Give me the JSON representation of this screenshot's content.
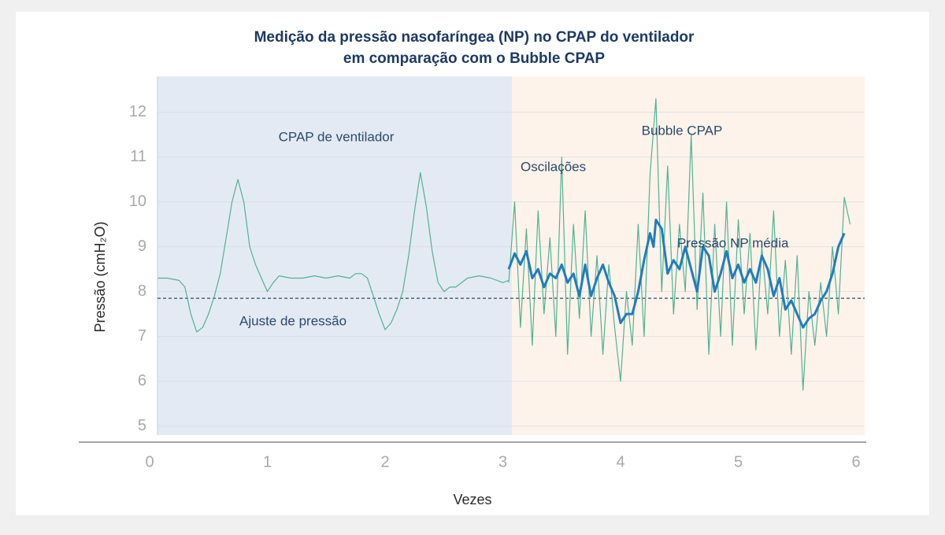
{
  "chart_data": {
    "type": "line",
    "title": [
      "Medição da pressão nasofaríngea (NP) no CPAP do ventilador",
      "em comparação com o Bubble CPAP"
    ],
    "x_label": "Vezes",
    "y_label": "Pressão (cmH₂O)",
    "xlim": [
      0,
      6
    ],
    "xticks": [
      0,
      1,
      2,
      3,
      4,
      5,
      6
    ],
    "ylim": [
      4.8,
      12.8
    ],
    "yticks": [
      5,
      6,
      7,
      8,
      9,
      10,
      11,
      12
    ],
    "grid": true,
    "reference_line": {
      "value": 7.85,
      "color": "#2a4a6e"
    },
    "annotations": [
      "CPAP de ventilador",
      "Bubble CPAP",
      "Oscilações",
      "Pressão NP média",
      "Ajuste de pressão"
    ],
    "series": [
      {
        "color": "#4fb393",
        "width": 1.2,
        "x": [
          0.07,
          0.15,
          0.25,
          0.3,
          0.35,
          0.4,
          0.45,
          0.5,
          0.55,
          0.6,
          0.65,
          0.7,
          0.75,
          0.8,
          0.85,
          0.9,
          0.95,
          1.0,
          1.05,
          1.1,
          1.2,
          1.3,
          1.4,
          1.5,
          1.6,
          1.7,
          1.75,
          1.8,
          1.85,
          1.9,
          1.95,
          2.0,
          2.05,
          2.1,
          2.15,
          2.2,
          2.25,
          2.3,
          2.35,
          2.4,
          2.45,
          2.5,
          2.55,
          2.6,
          2.7,
          2.8,
          2.9,
          3.0,
          3.05
        ],
        "values": [
          8.3,
          8.3,
          8.25,
          8.1,
          7.5,
          7.1,
          7.2,
          7.5,
          7.9,
          8.4,
          9.2,
          10.0,
          10.5,
          10.0,
          9.0,
          8.6,
          8.3,
          8.0,
          8.2,
          8.35,
          8.3,
          8.3,
          8.35,
          8.3,
          8.35,
          8.3,
          8.4,
          8.4,
          8.3,
          7.9,
          7.5,
          7.15,
          7.3,
          7.6,
          8.0,
          8.8,
          9.8,
          10.65,
          9.9,
          8.9,
          8.2,
          8.0,
          8.1,
          8.1,
          8.3,
          8.35,
          8.3,
          8.2,
          8.25
        ]
      },
      {
        "color": "#4fb393",
        "width": 1.2,
        "x": [
          3.05,
          3.1,
          3.15,
          3.2,
          3.25,
          3.3,
          3.35,
          3.4,
          3.45,
          3.5,
          3.55,
          3.6,
          3.65,
          3.7,
          3.75,
          3.8,
          3.85,
          3.9,
          3.95,
          4.0,
          4.05,
          4.1,
          4.15,
          4.2,
          4.25,
          4.3,
          4.35,
          4.4,
          4.45,
          4.5,
          4.55,
          4.6,
          4.65,
          4.7,
          4.75,
          4.8,
          4.85,
          4.9,
          4.95,
          5.0,
          5.05,
          5.1,
          5.15,
          5.2,
          5.25,
          5.3,
          5.35,
          5.4,
          5.45,
          5.5,
          5.55,
          5.6,
          5.65,
          5.7,
          5.75,
          5.8,
          5.85,
          5.9,
          5.95
        ],
        "values": [
          8.2,
          10.0,
          7.2,
          9.4,
          6.8,
          9.8,
          7.5,
          9.2,
          7.0,
          11.0,
          6.6,
          9.5,
          7.4,
          9.8,
          7.0,
          8.8,
          6.6,
          8.6,
          7.2,
          6.0,
          8.0,
          6.8,
          9.5,
          7.0,
          10.6,
          12.3,
          8.0,
          10.8,
          7.5,
          9.5,
          8.0,
          11.5,
          7.6,
          10.2,
          6.6,
          9.5,
          7.0,
          10.0,
          6.8,
          9.6,
          7.5,
          9.3,
          6.7,
          9.0,
          7.5,
          9.8,
          7.0,
          8.7,
          6.6,
          8.8,
          5.8,
          8.0,
          6.8,
          8.2,
          7.0,
          9.0,
          7.5,
          10.1,
          9.5
        ]
      },
      {
        "color": "#1f7dbd",
        "width": 3,
        "x": [
          3.05,
          3.1,
          3.15,
          3.2,
          3.25,
          3.3,
          3.35,
          3.4,
          3.45,
          3.5,
          3.55,
          3.6,
          3.65,
          3.7,
          3.75,
          3.8,
          3.85,
          3.9,
          3.95,
          4.0,
          4.05,
          4.1,
          4.15,
          4.2,
          4.25,
          4.28,
          4.3,
          4.35,
          4.4,
          4.45,
          4.5,
          4.55,
          4.6,
          4.65,
          4.7,
          4.75,
          4.8,
          4.85,
          4.9,
          4.95,
          5.0,
          5.05,
          5.1,
          5.15,
          5.2,
          5.25,
          5.3,
          5.35,
          5.4,
          5.45,
          5.5,
          5.55,
          5.6,
          5.65,
          5.7,
          5.75,
          5.8,
          5.85,
          5.9
        ],
        "values": [
          8.5,
          8.85,
          8.6,
          8.9,
          8.3,
          8.5,
          8.1,
          8.4,
          8.3,
          8.6,
          8.2,
          8.4,
          7.9,
          8.6,
          7.9,
          8.3,
          8.6,
          8.2,
          7.9,
          7.3,
          7.5,
          7.5,
          8.0,
          8.7,
          9.3,
          9.0,
          9.6,
          9.4,
          8.4,
          8.7,
          8.5,
          9.0,
          8.5,
          8.0,
          9.0,
          8.8,
          8.0,
          8.4,
          8.9,
          8.3,
          8.6,
          8.2,
          8.5,
          8.2,
          8.8,
          8.5,
          7.9,
          8.3,
          7.6,
          7.8,
          7.5,
          7.2,
          7.4,
          7.5,
          7.8,
          8.0,
          8.4,
          9.0,
          9.3
        ]
      }
    ]
  }
}
